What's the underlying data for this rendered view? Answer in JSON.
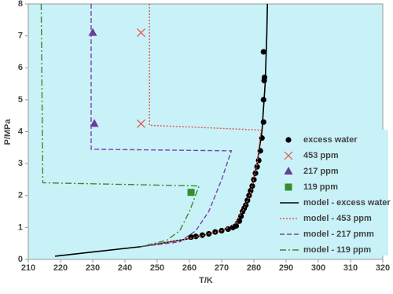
{
  "chart_data": {
    "type": "line",
    "x_label": "T/K",
    "y_label": "P/MPa",
    "xlim": [
      210,
      320
    ],
    "xticks": [
      210,
      220,
      230,
      240,
      250,
      260,
      270,
      280,
      290,
      300,
      310,
      320
    ],
    "ylim": [
      0,
      8
    ],
    "yticks": [
      0,
      1,
      2,
      3,
      4,
      5,
      6,
      7,
      8
    ],
    "background": "#c8f2f7",
    "series": [
      {
        "name": "excess water",
        "color": "#000000",
        "marker": "circle",
        "x": [
          260.5,
          262,
          264,
          266,
          268,
          270,
          272,
          273.5,
          274.5,
          275.5,
          276,
          276.5,
          277,
          277.5,
          278,
          278.5,
          279,
          279.5,
          280,
          280.5,
          281,
          281.5,
          282,
          282.5,
          283,
          283,
          283.2,
          283.3,
          283
        ],
        "y": [
          0.7,
          0.72,
          0.76,
          0.8,
          0.86,
          0.9,
          0.95,
          1.0,
          1.05,
          1.2,
          1.35,
          1.5,
          1.6,
          1.7,
          1.85,
          2.0,
          2.15,
          2.3,
          2.5,
          2.7,
          2.9,
          3.1,
          3.4,
          3.8,
          4.3,
          5.0,
          5.6,
          5.7,
          6.5
        ]
      },
      {
        "name": "453 ppm",
        "color": "#e8524a",
        "marker": "x",
        "x": [
          245,
          245
        ],
        "y": [
          7.1,
          4.25
        ]
      },
      {
        "name": "217 ppm",
        "color": "#6a3d9a",
        "marker": "triangle",
        "x": [
          230,
          230.5
        ],
        "y": [
          7.1,
          4.25
        ]
      },
      {
        "name": "119 ppm",
        "color": "#3a8a2e",
        "marker": "square",
        "x": [
          260.5
        ],
        "y": [
          2.1
        ]
      },
      {
        "name": "model - excess water",
        "color": "#000000",
        "line_style": "solid",
        "x": [
          218.3,
          245,
          260,
          270,
          274,
          277,
          279,
          281,
          282.5,
          283.5,
          284,
          284.2
        ],
        "y": [
          0.1,
          0.4,
          0.65,
          0.9,
          1.1,
          1.6,
          2.1,
          3.0,
          4.0,
          5.5,
          7,
          8
        ]
      },
      {
        "name": "model - 453 ppm",
        "color": "#e8524a",
        "line_style": "dotted",
        "x": [
          247.6,
          247.6,
          282.2,
          281,
          279,
          277,
          274,
          270,
          260,
          245
        ],
        "y": [
          8,
          4.2,
          4.05,
          3.0,
          2.1,
          1.6,
          1.1,
          0.9,
          0.65,
          0.4
        ]
      },
      {
        "name": "model - 217 pmm",
        "color": "#7b3fa8",
        "line_style": "dashed",
        "x": [
          229.5,
          229.5,
          273,
          270,
          266,
          262,
          257,
          245
        ],
        "y": [
          8,
          3.45,
          3.4,
          2.5,
          1.5,
          0.9,
          0.55,
          0.4
        ]
      },
      {
        "name": "model - 119 ppm",
        "color": "#3a8a2e",
        "line_style": "dashdot",
        "x": [
          214,
          214.5,
          263,
          260,
          257,
          253,
          245
        ],
        "y": [
          8,
          2.4,
          2.3,
          1.5,
          0.9,
          0.6,
          0.4
        ]
      }
    ]
  }
}
